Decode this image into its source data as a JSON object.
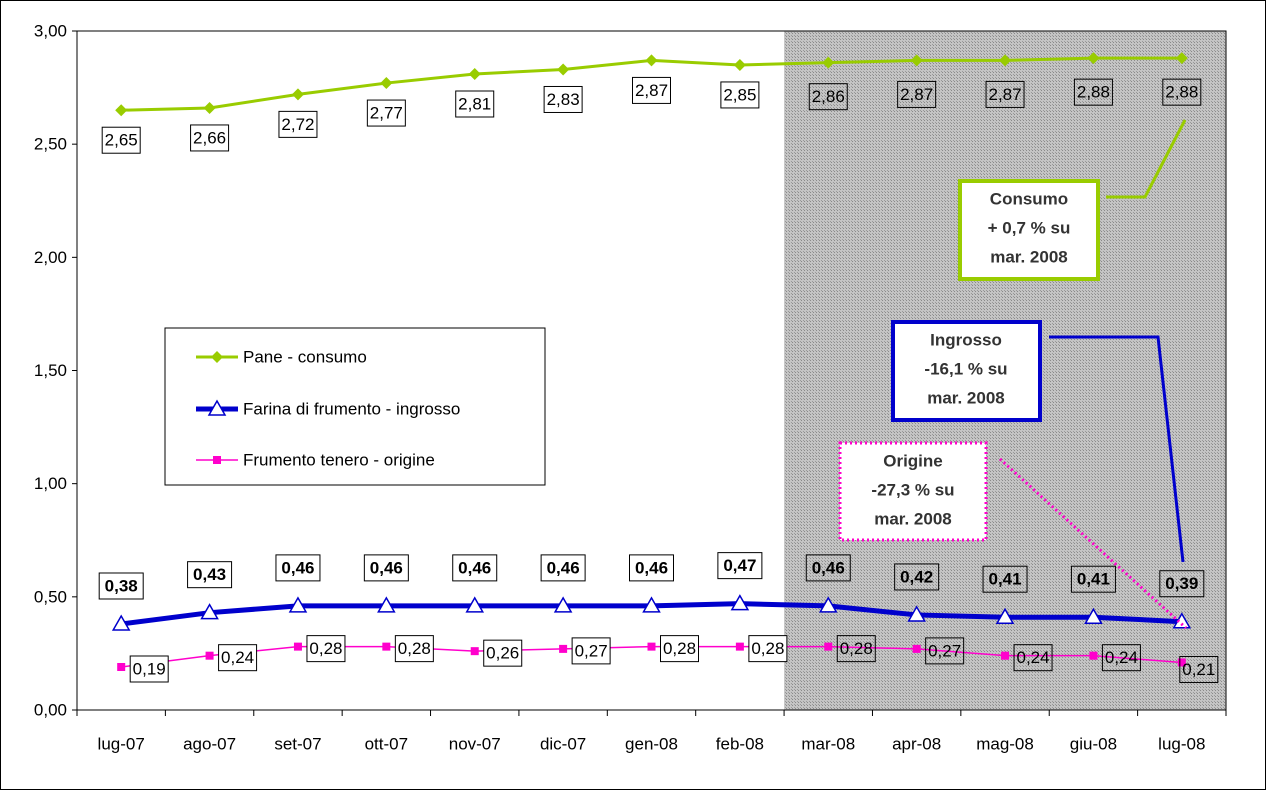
{
  "chart_data": {
    "type": "line",
    "categories": [
      "lug-07",
      "ago-07",
      "set-07",
      "ott-07",
      "nov-07",
      "dic-07",
      "gen-08",
      "feb-08",
      "mar-08",
      "apr-08",
      "mag-08",
      "giu-08",
      "lug-08"
    ],
    "ylim": [
      0,
      3
    ],
    "yticks": [
      "0,00",
      "0,50",
      "1,00",
      "1,50",
      "2,00",
      "2,50",
      "3,00"
    ],
    "grid": false,
    "legend_position": "left-middle",
    "shaded_region": {
      "from": "mar-08",
      "to": "lug-08"
    },
    "series": [
      {
        "name": "Pane - consumo",
        "color": "#99cc00",
        "marker": "diamond",
        "values": [
          2.65,
          2.66,
          2.72,
          2.77,
          2.81,
          2.83,
          2.87,
          2.85,
          2.86,
          2.87,
          2.87,
          2.88,
          2.88
        ],
        "labels": [
          "2,65",
          "2,66",
          "2,72",
          "2,77",
          "2,81",
          "2,83",
          "2,87",
          "2,85",
          "2,86",
          "2,87",
          "2,87",
          "2,88",
          "2,88"
        ]
      },
      {
        "name": "Farina di frumento - ingrosso",
        "color": "#0000cc",
        "marker": "triangle",
        "values": [
          0.38,
          0.43,
          0.46,
          0.46,
          0.46,
          0.46,
          0.46,
          0.47,
          0.46,
          0.42,
          0.41,
          0.41,
          0.39
        ],
        "labels": [
          "0,38",
          "0,43",
          "0,46",
          "0,46",
          "0,46",
          "0,46",
          "0,46",
          "0,47",
          "0,46",
          "0,42",
          "0,41",
          "0,41",
          "0,39"
        ]
      },
      {
        "name": "Frumento tenero - origine",
        "color": "#ff00cc",
        "marker": "square",
        "values": [
          0.19,
          0.24,
          0.28,
          0.28,
          0.26,
          0.27,
          0.28,
          0.28,
          0.28,
          0.27,
          0.24,
          0.24,
          0.21
        ],
        "labels": [
          "0,19",
          "0,24",
          "0,28",
          "0,28",
          "0,26",
          "0,27",
          "0,28",
          "0,28",
          "0,28",
          "0,27",
          "0,24",
          "0,24",
          "0,21"
        ]
      }
    ],
    "annotations": [
      {
        "series": 0,
        "lines": [
          "Consumo",
          "+ 0,7 % su",
          "mar. 2008"
        ]
      },
      {
        "series": 1,
        "lines": [
          "Ingrosso",
          "-16,1 % su",
          "mar. 2008"
        ]
      },
      {
        "series": 2,
        "lines": [
          "Origine",
          "-27,3 % su",
          "mar. 2008"
        ]
      }
    ]
  }
}
